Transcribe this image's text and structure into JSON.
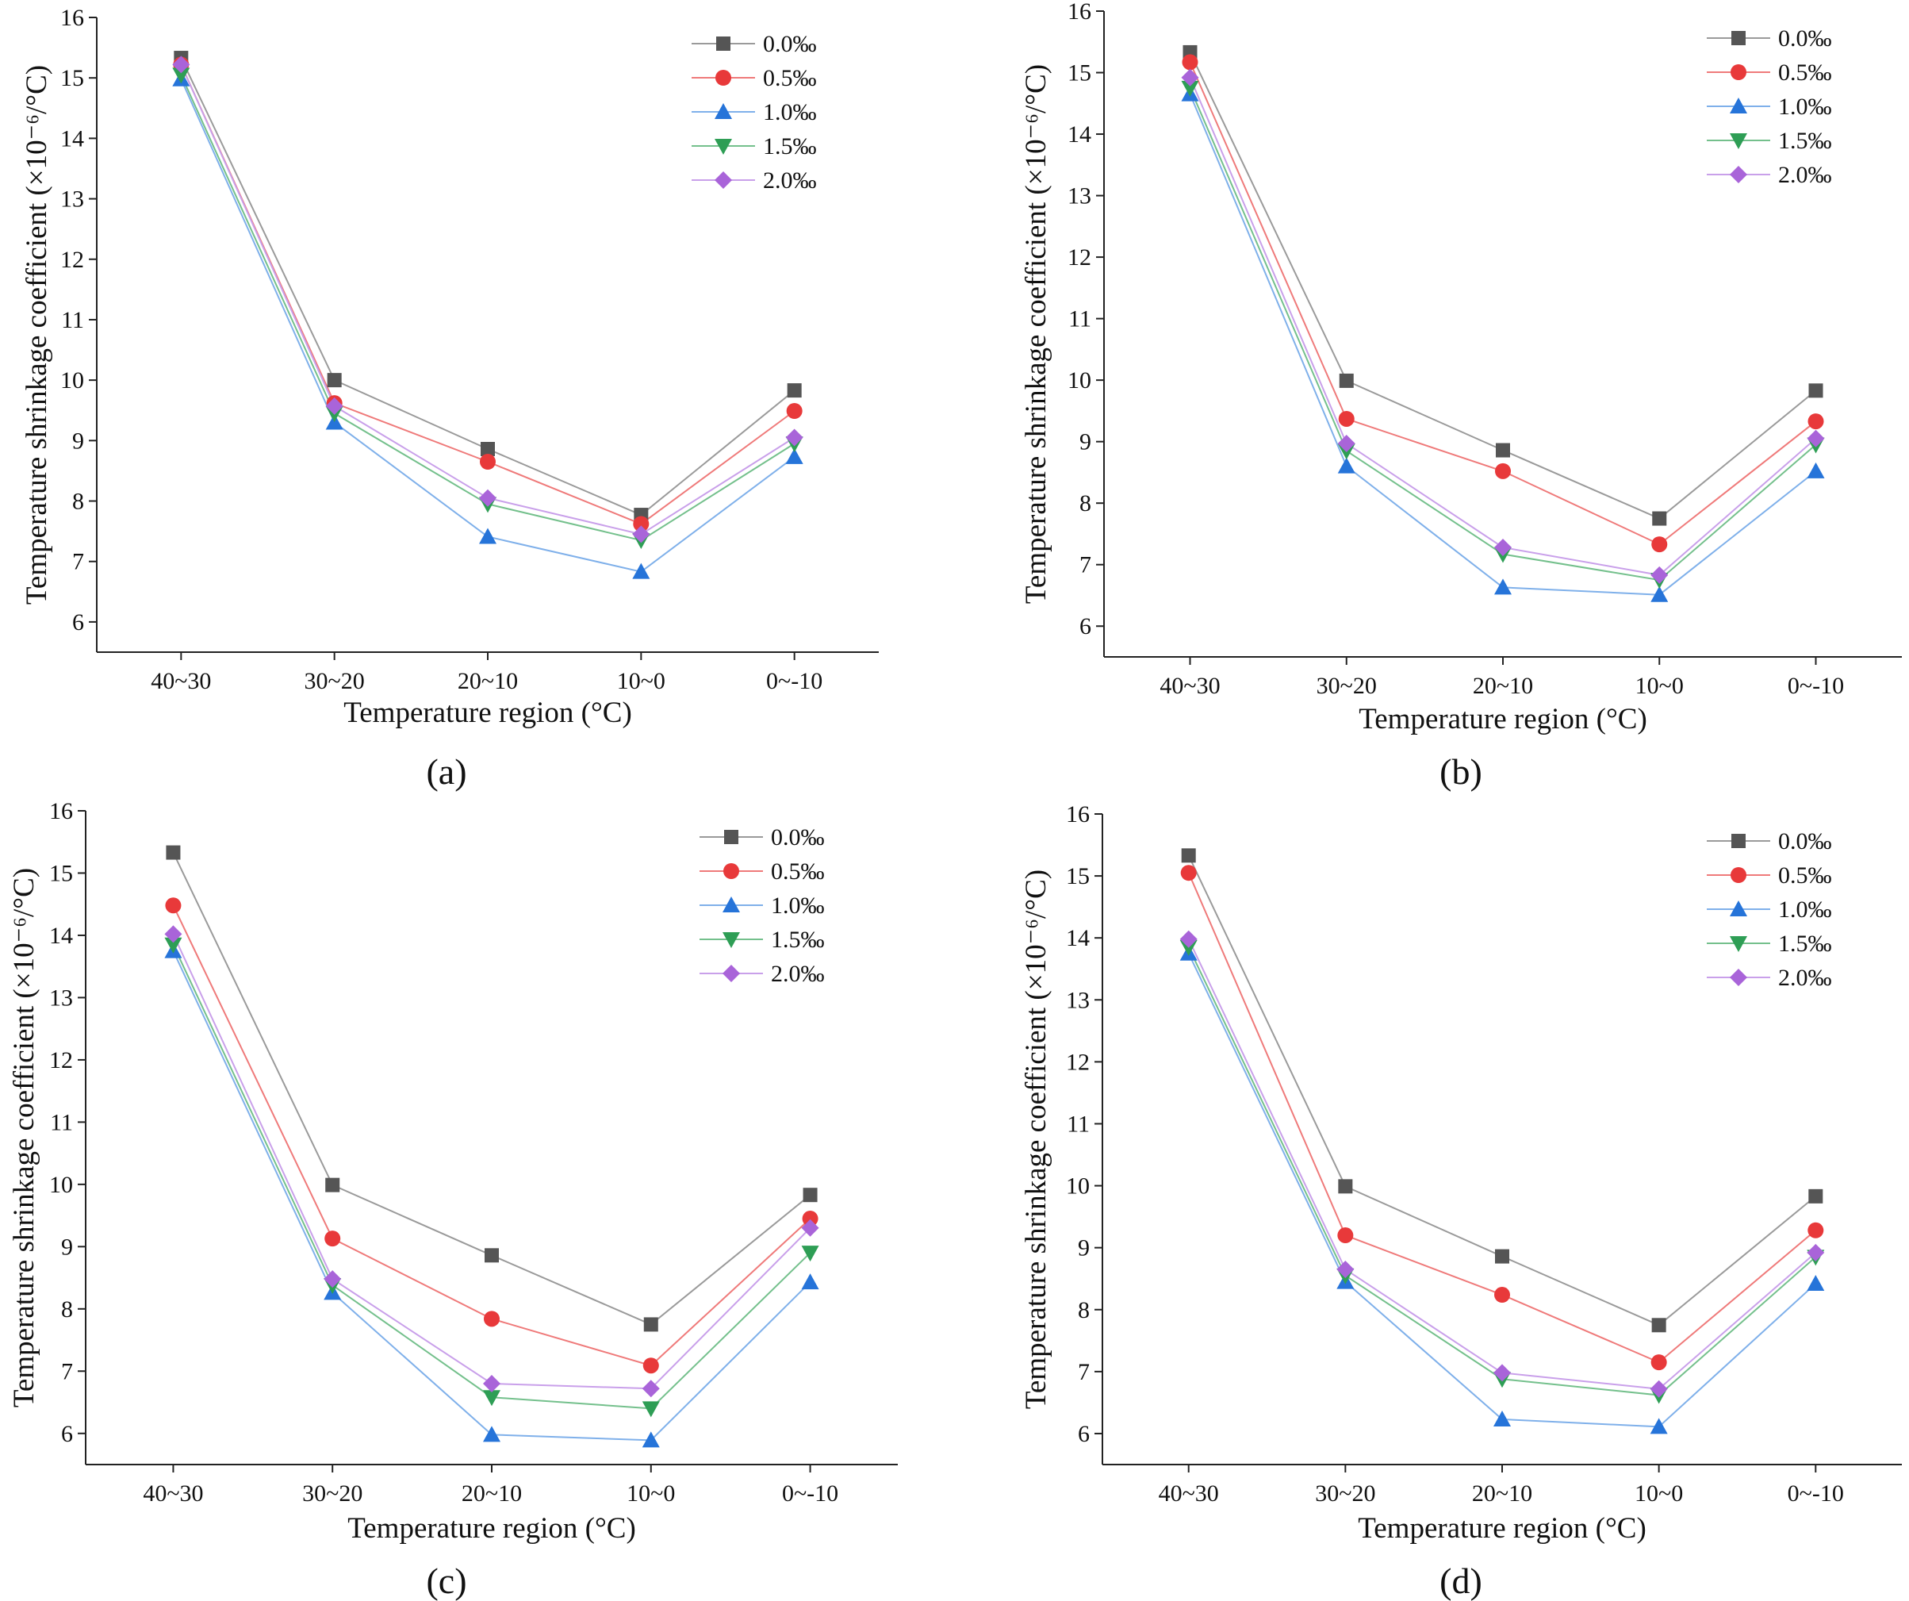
{
  "chart_data": [
    {
      "type": "line",
      "panel": "a",
      "caption": "(a)",
      "xlabel": "Temperature region (°C)",
      "ylabel": "Temperature shrinkage coefficient (×10⁻⁶/°C)",
      "categories": [
        "40~30",
        "30~20",
        "20~10",
        "10~0",
        "0~-10"
      ],
      "ylim": [
        5.5,
        16
      ],
      "yticks": [
        6,
        7,
        8,
        9,
        10,
        11,
        12,
        13,
        14,
        15,
        16
      ],
      "legend_position": "top-right",
      "grid": false,
      "series": [
        {
          "name": "0.0‰",
          "marker": "square",
          "color": "#555555",
          "values": [
            15.33,
            10.0,
            8.86,
            7.77,
            9.83
          ]
        },
        {
          "name": "0.5‰",
          "marker": "circle",
          "color": "#e8393a",
          "values": [
            15.22,
            9.62,
            8.65,
            7.62,
            9.49
          ]
        },
        {
          "name": "1.0‰",
          "marker": "triangle-up",
          "color": "#2674d9",
          "values": [
            14.98,
            9.3,
            7.41,
            6.83,
            8.73
          ]
        },
        {
          "name": "1.5‰",
          "marker": "triangle-down",
          "color": "#2e9e55",
          "values": [
            15.05,
            9.45,
            7.95,
            7.35,
            8.95
          ]
        },
        {
          "name": "2.0‰",
          "marker": "diamond",
          "color": "#a964d9",
          "values": [
            15.22,
            9.57,
            8.05,
            7.45,
            9.05
          ]
        }
      ]
    },
    {
      "type": "line",
      "panel": "b",
      "caption": "(b)",
      "xlabel": "Temperature region (°C)",
      "ylabel": "Temperature shrinkage coefficient (×10⁻⁶/°C)",
      "categories": [
        "40~30",
        "30~20",
        "20~10",
        "10~0",
        "0~-10"
      ],
      "ylim": [
        5.5,
        16
      ],
      "yticks": [
        6,
        7,
        8,
        9,
        10,
        11,
        12,
        13,
        14,
        15,
        16
      ],
      "legend_position": "top-right",
      "grid": false,
      "series": [
        {
          "name": "0.0‰",
          "marker": "square",
          "color": "#555555",
          "values": [
            15.33,
            9.99,
            8.86,
            7.75,
            9.83
          ]
        },
        {
          "name": "0.5‰",
          "marker": "circle",
          "color": "#e8393a",
          "values": [
            15.17,
            9.37,
            8.52,
            7.33,
            9.33
          ]
        },
        {
          "name": "1.0‰",
          "marker": "triangle-up",
          "color": "#2674d9",
          "values": [
            14.65,
            8.6,
            6.63,
            6.51,
            8.52
          ]
        },
        {
          "name": "1.5‰",
          "marker": "triangle-down",
          "color": "#2e9e55",
          "values": [
            14.75,
            8.85,
            7.17,
            6.75,
            8.95
          ]
        },
        {
          "name": "2.0‰",
          "marker": "diamond",
          "color": "#a964d9",
          "values": [
            14.92,
            8.97,
            7.28,
            6.83,
            9.05
          ]
        }
      ]
    },
    {
      "type": "line",
      "panel": "c",
      "caption": "(c)",
      "xlabel": "Temperature region (°C)",
      "ylabel": "Temperature shrinkage coefficient (×10⁻⁶/°C)",
      "categories": [
        "40~30",
        "30~20",
        "20~10",
        "10~0",
        "0~-10"
      ],
      "ylim": [
        5.5,
        16
      ],
      "yticks": [
        6,
        7,
        8,
        9,
        10,
        11,
        12,
        13,
        14,
        15,
        16
      ],
      "legend_position": "top-right",
      "grid": false,
      "series": [
        {
          "name": "0.0‰",
          "marker": "square",
          "color": "#555555",
          "values": [
            15.33,
            9.99,
            8.86,
            7.75,
            9.83
          ]
        },
        {
          "name": "0.5‰",
          "marker": "circle",
          "color": "#e8393a",
          "values": [
            14.48,
            9.13,
            7.84,
            7.09,
            9.45
          ]
        },
        {
          "name": "1.0‰",
          "marker": "triangle-up",
          "color": "#2674d9",
          "values": [
            13.75,
            8.26,
            5.98,
            5.89,
            8.43
          ]
        },
        {
          "name": "1.5‰",
          "marker": "triangle-down",
          "color": "#2e9e55",
          "values": [
            13.85,
            8.38,
            6.58,
            6.4,
            8.9
          ]
        },
        {
          "name": "2.0‰",
          "marker": "diamond",
          "color": "#a964d9",
          "values": [
            14.02,
            8.48,
            6.8,
            6.72,
            9.3
          ]
        }
      ]
    },
    {
      "type": "line",
      "panel": "d",
      "caption": "(d)",
      "xlabel": "Temperature region (°C)",
      "ylabel": "Temperature shrinkage coefficient (×10⁻⁶/°C)",
      "categories": [
        "40~30",
        "30~20",
        "20~10",
        "10~0",
        "0~-10"
      ],
      "ylim": [
        5.5,
        16
      ],
      "yticks": [
        6,
        7,
        8,
        9,
        10,
        11,
        12,
        13,
        14,
        15,
        16
      ],
      "legend_position": "top-right",
      "grid": false,
      "series": [
        {
          "name": "0.0‰",
          "marker": "square",
          "color": "#555555",
          "values": [
            15.33,
            9.99,
            8.86,
            7.75,
            9.83
          ]
        },
        {
          "name": "0.5‰",
          "marker": "circle",
          "color": "#e8393a",
          "values": [
            15.05,
            9.2,
            8.24,
            7.15,
            9.28
          ]
        },
        {
          "name": "1.0‰",
          "marker": "triangle-up",
          "color": "#2674d9",
          "values": [
            13.75,
            8.45,
            6.23,
            6.11,
            8.42
          ]
        },
        {
          "name": "1.5‰",
          "marker": "triangle-down",
          "color": "#2e9e55",
          "values": [
            13.85,
            8.55,
            6.88,
            6.62,
            8.85
          ]
        },
        {
          "name": "2.0‰",
          "marker": "diamond",
          "color": "#a964d9",
          "values": [
            13.98,
            8.65,
            6.98,
            6.72,
            8.92
          ]
        }
      ]
    }
  ]
}
